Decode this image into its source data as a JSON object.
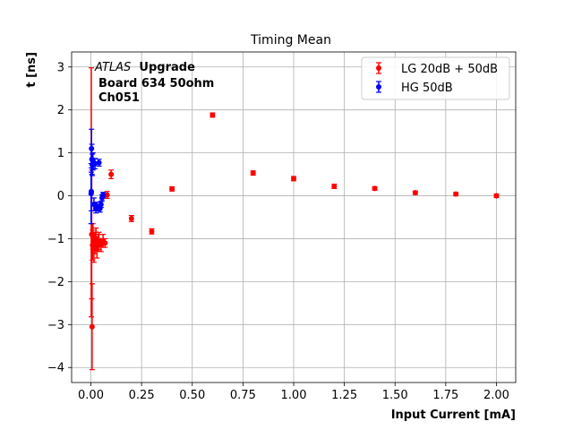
{
  "chart_data": {
    "type": "scatter",
    "title": "Timing Mean",
    "xlabel": "Input Current [mA]",
    "ylabel": "t [ns]",
    "xlim": [
      -0.095,
      2.095
    ],
    "ylim": [
      -4.35,
      3.35
    ],
    "xticks": [
      0.0,
      0.25,
      0.5,
      0.75,
      1.0,
      1.25,
      1.5,
      1.75,
      2.0
    ],
    "xtick_labels": [
      "0.00",
      "0.25",
      "0.50",
      "0.75",
      "1.00",
      "1.25",
      "1.50",
      "1.75",
      "2.00"
    ],
    "yticks": [
      -4,
      -3,
      -2,
      -1,
      0,
      1,
      2,
      3
    ],
    "ytick_labels": [
      "−4",
      "−3",
      "−2",
      "−1",
      "0",
      "1",
      "2",
      "3"
    ],
    "grid": true,
    "legend_position": "top-right",
    "annotation": {
      "experiment": "ATLAS",
      "status": "Upgrade",
      "line2": "Board 634 50ohm",
      "line3": "Ch051"
    },
    "series": [
      {
        "name": "LG 20dB + 50dB",
        "color": "#ff0000",
        "points": [
          {
            "x": 0.002,
            "y": 0.08,
            "err": 2.9
          },
          {
            "x": 0.004,
            "y": -0.9,
            "err": 1.5
          },
          {
            "x": 0.006,
            "y": -3.05,
            "err": 1.0
          },
          {
            "x": 0.008,
            "y": -1.15,
            "err": 0.35
          },
          {
            "x": 0.01,
            "y": -0.95,
            "err": 0.3
          },
          {
            "x": 0.015,
            "y": -1.2,
            "err": 0.35
          },
          {
            "x": 0.02,
            "y": -1.1,
            "err": 0.25
          },
          {
            "x": 0.025,
            "y": -1.0,
            "err": 0.25
          },
          {
            "x": 0.03,
            "y": -1.25,
            "err": 0.2
          },
          {
            "x": 0.035,
            "y": -1.1,
            "err": 0.2
          },
          {
            "x": 0.04,
            "y": -1.05,
            "err": 0.2
          },
          {
            "x": 0.05,
            "y": -1.15,
            "err": 0.15
          },
          {
            "x": 0.06,
            "y": -1.05,
            "err": 0.15
          },
          {
            "x": 0.07,
            "y": -1.1,
            "err": 0.1
          },
          {
            "x": 0.08,
            "y": 0.02,
            "err": 0.08
          },
          {
            "x": 0.1,
            "y": 0.5,
            "err": 0.1
          },
          {
            "x": 0.2,
            "y": -0.53,
            "err": 0.07
          },
          {
            "x": 0.3,
            "y": -0.83,
            "err": 0.06
          },
          {
            "x": 0.4,
            "y": 0.16,
            "err": 0.05
          },
          {
            "x": 0.6,
            "y": 1.88,
            "err": 0.05
          },
          {
            "x": 0.8,
            "y": 0.53,
            "err": 0.05
          },
          {
            "x": 1.0,
            "y": 0.4,
            "err": 0.05
          },
          {
            "x": 1.2,
            "y": 0.22,
            "err": 0.05
          },
          {
            "x": 1.4,
            "y": 0.17,
            "err": 0.04
          },
          {
            "x": 1.6,
            "y": 0.07,
            "err": 0.04
          },
          {
            "x": 1.8,
            "y": 0.04,
            "err": 0.04
          },
          {
            "x": 2.0,
            "y": 0.0,
            "err": 0.04
          }
        ]
      },
      {
        "name": "HG 50dB",
        "color": "#0000ff",
        "points": [
          {
            "x": 0.001,
            "y": 0.05,
            "err": 0.7
          },
          {
            "x": 0.002,
            "y": 0.1,
            "err": 0.45
          },
          {
            "x": 0.003,
            "y": 1.1,
            "err": 0.45
          },
          {
            "x": 0.005,
            "y": 0.85,
            "err": 0.35
          },
          {
            "x": 0.007,
            "y": 0.72,
            "err": 0.25
          },
          {
            "x": 0.01,
            "y": 0.8,
            "err": 0.2
          },
          {
            "x": 0.015,
            "y": -0.2,
            "err": 0.15
          },
          {
            "x": 0.02,
            "y": 0.75,
            "err": 0.12
          },
          {
            "x": 0.025,
            "y": -0.3,
            "err": 0.1
          },
          {
            "x": 0.03,
            "y": -0.25,
            "err": 0.1
          },
          {
            "x": 0.04,
            "y": 0.77,
            "err": 0.08
          },
          {
            "x": 0.045,
            "y": -0.3,
            "err": 0.08
          },
          {
            "x": 0.05,
            "y": -0.2,
            "err": 0.07
          },
          {
            "x": 0.055,
            "y": -0.05,
            "err": 0.07
          },
          {
            "x": 0.06,
            "y": 0.02,
            "err": 0.06
          }
        ]
      }
    ]
  }
}
